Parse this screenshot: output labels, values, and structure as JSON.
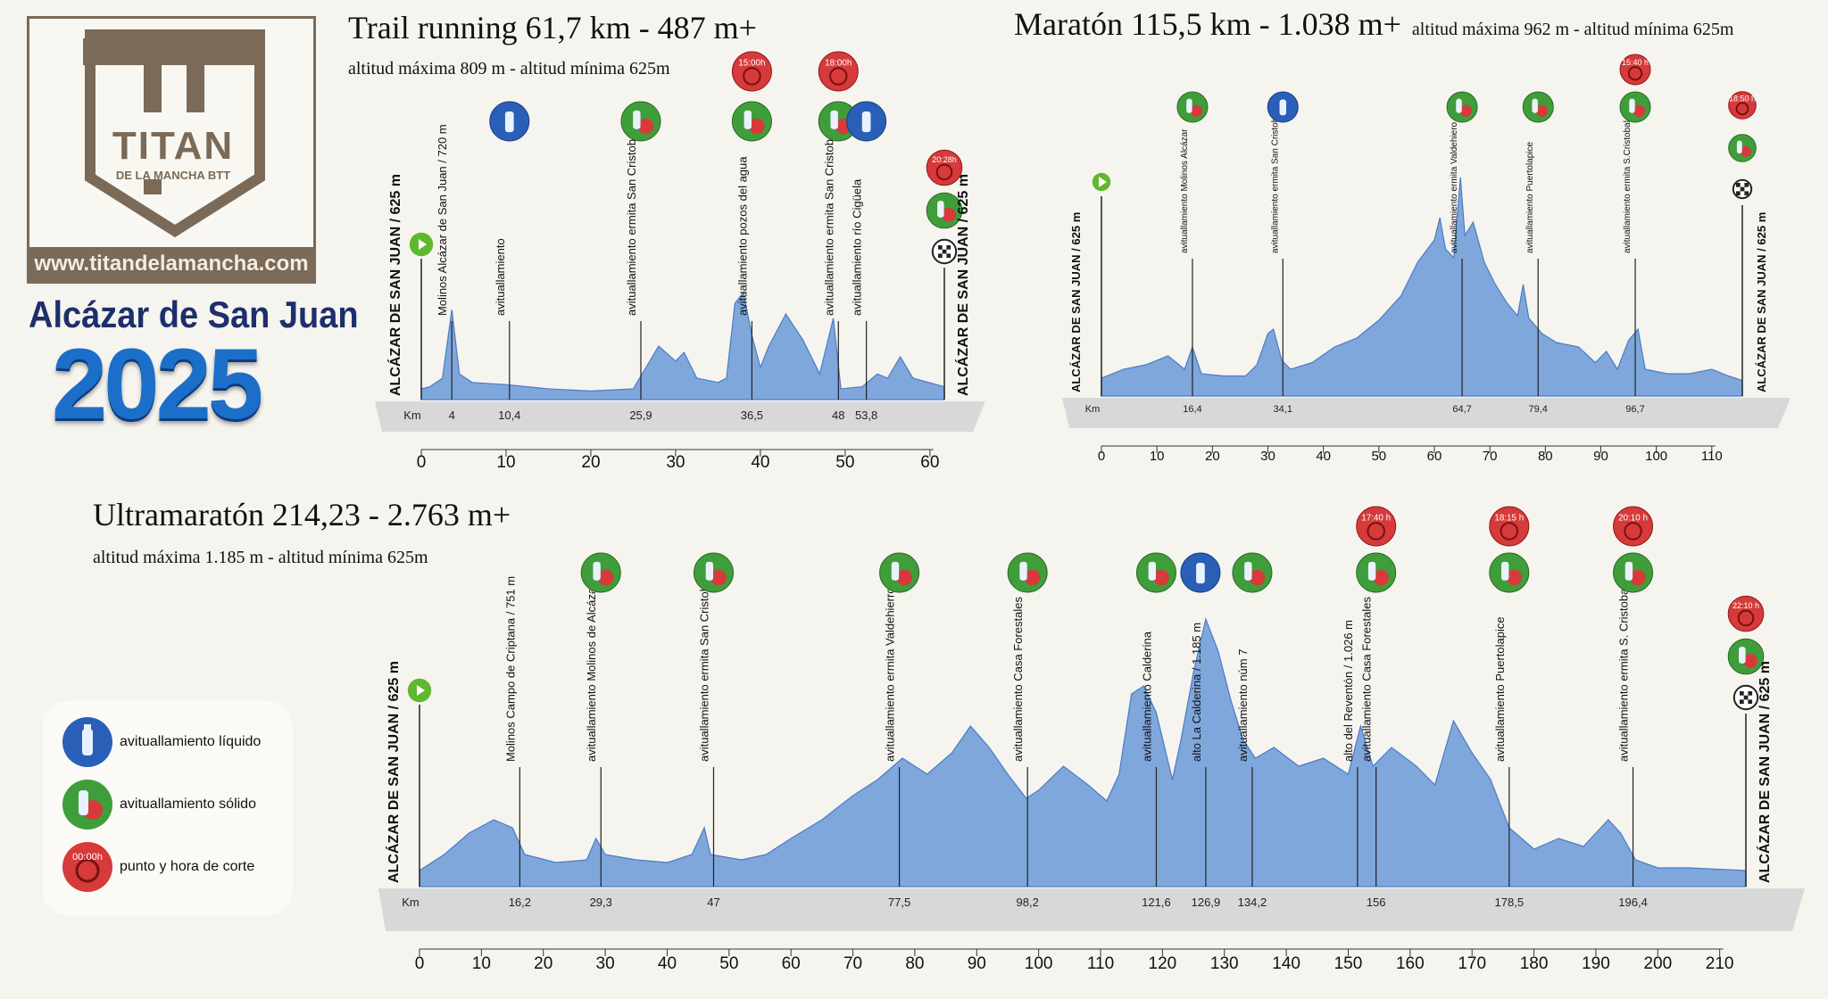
{
  "logo": {
    "name": "TITAN",
    "subtitle": "DE LA MANCHA BTT",
    "url": "www.titandelamancha.com"
  },
  "city": "Alcázar de San Juan",
  "year": "2025",
  "colors": {
    "profile": "#7fa7dc",
    "profile_stroke": "#4a7cc4",
    "base": "#d8d8d8",
    "cut": "#d63a3a",
    "solid": "#3f9e3a",
    "liquid": "#2a5fb8",
    "brand": "#7a6a57"
  },
  "legend": [
    {
      "icon": "water-bottle-icon",
      "label": "avituallamiento líquido"
    },
    {
      "icon": "bottle-apple-icon",
      "label": "avituallamiento sólido"
    },
    {
      "icon": "stopwatch-icon",
      "badge": "00:00h",
      "label": "punto y hora de corte"
    }
  ],
  "chart_data": [
    {
      "type": "area",
      "title": "Trail running 61,7 km - 487 m+",
      "subtitle": "altitud máxima 809 m - altitud mínima 625m",
      "x_unit": "Km",
      "xlim": [
        0,
        61.7
      ],
      "x_ticks": [
        0,
        10,
        20,
        30,
        40,
        50,
        60
      ],
      "profile": [
        [
          0,
          0.05
        ],
        [
          1,
          0.06
        ],
        [
          2.5,
          0.1
        ],
        [
          3.6,
          0.42
        ],
        [
          4.5,
          0.12
        ],
        [
          6,
          0.08
        ],
        [
          10,
          0.07
        ],
        [
          15,
          0.05
        ],
        [
          20,
          0.04
        ],
        [
          25,
          0.05
        ],
        [
          26.5,
          0.15
        ],
        [
          28,
          0.25
        ],
        [
          30,
          0.18
        ],
        [
          31,
          0.22
        ],
        [
          32.5,
          0.1
        ],
        [
          35,
          0.08
        ],
        [
          36,
          0.1
        ],
        [
          37,
          0.45
        ],
        [
          38,
          0.5
        ],
        [
          39,
          0.3
        ],
        [
          40,
          0.15
        ],
        [
          41,
          0.25
        ],
        [
          43,
          0.4
        ],
        [
          45,
          0.28
        ],
        [
          47,
          0.12
        ],
        [
          48.6,
          0.38
        ],
        [
          49.5,
          0.05
        ],
        [
          52,
          0.06
        ],
        [
          53.8,
          0.12
        ],
        [
          55,
          0.1
        ],
        [
          56.5,
          0.2
        ],
        [
          58,
          0.1
        ],
        [
          61.7,
          0.06
        ]
      ],
      "start": {
        "label": "ALCÁZAR DE SAN JUAN / 625 m"
      },
      "finish": {
        "label": "ALCÁZAR DE SAN JUAN / 625 m",
        "cut": "20:28h"
      },
      "points": [
        {
          "km": "4",
          "x": 3.6,
          "label": "Molinos Alcázar de San Juan / 720 m",
          "icons": []
        },
        {
          "km": "10,4",
          "x": 10.4,
          "label": "avituallamiento",
          "icons": [
            "liquid"
          ]
        },
        {
          "km": "25,9",
          "x": 25.9,
          "label": "avituallamiento ermita San Cristobal",
          "icons": [
            "solid"
          ]
        },
        {
          "km": "36,5",
          "x": 39,
          "label": "avituallamiento pozos del agua",
          "icons": [
            "cut",
            "solid"
          ],
          "cut": "15:00h"
        },
        {
          "km": "48",
          "x": 49.2,
          "label": "avituallamiento ermita San Cristobal",
          "icons": [
            "cut",
            "solid"
          ],
          "cut": "18:00h"
        },
        {
          "km": "53,8",
          "x": 52.5,
          "label": "avituallamiento río Cigüela",
          "icons": [
            "liquid"
          ]
        }
      ]
    },
    {
      "type": "area",
      "title": "Maratón 115,5 km - 1.038 m+",
      "subtitle": "altitud máxima 962 m - altitud mínima 625m",
      "x_unit": "Km",
      "xlim": [
        0,
        115.5
      ],
      "x_ticks": [
        0,
        10,
        20,
        30,
        40,
        50,
        60,
        70,
        80,
        90,
        100,
        110
      ],
      "profile": [
        [
          0,
          0.08
        ],
        [
          4,
          0.12
        ],
        [
          8,
          0.14
        ],
        [
          12,
          0.18
        ],
        [
          15,
          0.12
        ],
        [
          16.4,
          0.22
        ],
        [
          18,
          0.1
        ],
        [
          22,
          0.09
        ],
        [
          26,
          0.09
        ],
        [
          28,
          0.14
        ],
        [
          30,
          0.28
        ],
        [
          31,
          0.3
        ],
        [
          32.5,
          0.16
        ],
        [
          34.1,
          0.12
        ],
        [
          38,
          0.15
        ],
        [
          42,
          0.22
        ],
        [
          46,
          0.26
        ],
        [
          50,
          0.34
        ],
        [
          54,
          0.45
        ],
        [
          57,
          0.6
        ],
        [
          60,
          0.7
        ],
        [
          61,
          0.8
        ],
        [
          62,
          0.66
        ],
        [
          63.5,
          0.62
        ],
        [
          64.7,
          0.98
        ],
        [
          65.5,
          0.72
        ],
        [
          67,
          0.78
        ],
        [
          69,
          0.6
        ],
        [
          71,
          0.5
        ],
        [
          73,
          0.42
        ],
        [
          75,
          0.36
        ],
        [
          76,
          0.5
        ],
        [
          77,
          0.35
        ],
        [
          79.4,
          0.28
        ],
        [
          82,
          0.24
        ],
        [
          86,
          0.22
        ],
        [
          89,
          0.15
        ],
        [
          91,
          0.2
        ],
        [
          93,
          0.12
        ],
        [
          95,
          0.25
        ],
        [
          96.7,
          0.3
        ],
        [
          98,
          0.12
        ],
        [
          102,
          0.1
        ],
        [
          106,
          0.1
        ],
        [
          110,
          0.12
        ],
        [
          113,
          0.09
        ],
        [
          115.5,
          0.07
        ]
      ],
      "start": {
        "label": "ALCÁZAR DE SAN JUAN / 625 m"
      },
      "finish": {
        "label": "ALCÁZAR DE SAN JUAN / 625 m",
        "cut": "18:50 h"
      },
      "points": [
        {
          "km": "16,4",
          "x": 16.4,
          "label": "avituallamiento Molinos Alcázar",
          "icons": [
            "solid"
          ]
        },
        {
          "km": "34,1",
          "x": 32.7,
          "label": "avituallamiento ermita San Cristobal",
          "icons": [
            "liquid"
          ]
        },
        {
          "km": "64,7",
          "x": 65,
          "label": "avituallamiento ermita Valdehiero",
          "icons": [
            "solid"
          ]
        },
        {
          "km": "79,4",
          "x": 78.7,
          "label": "avituallamiento Puertolapice",
          "icons": [
            "solid"
          ]
        },
        {
          "km": "96,7",
          "x": 96.2,
          "label": "avituallamiento ermita S.Cristobal",
          "icons": [
            "cut",
            "solid"
          ],
          "cut": "15:40 h"
        }
      ]
    },
    {
      "type": "area",
      "title": "Ultramaratón 214,23 - 2.763 m+",
      "subtitle": "altitud máxima 1.185 m - altitud mínima 625m",
      "x_unit": "Km",
      "xlim": [
        0,
        214.23
      ],
      "x_ticks": [
        0,
        10,
        20,
        30,
        40,
        50,
        60,
        70,
        80,
        90,
        100,
        110,
        120,
        130,
        140,
        150,
        160,
        170,
        180,
        190,
        200,
        210
      ],
      "profile": [
        [
          0,
          0.06
        ],
        [
          4,
          0.12
        ],
        [
          8,
          0.2
        ],
        [
          12,
          0.25
        ],
        [
          15,
          0.22
        ],
        [
          17,
          0.12
        ],
        [
          22,
          0.09
        ],
        [
          27,
          0.1
        ],
        [
          28.5,
          0.18
        ],
        [
          30,
          0.12
        ],
        [
          35,
          0.1
        ],
        [
          40,
          0.09
        ],
        [
          44,
          0.12
        ],
        [
          46,
          0.22
        ],
        [
          47,
          0.12
        ],
        [
          52,
          0.1
        ],
        [
          56,
          0.12
        ],
        [
          60,
          0.18
        ],
        [
          65,
          0.25
        ],
        [
          70,
          0.34
        ],
        [
          74,
          0.4
        ],
        [
          78,
          0.48
        ],
        [
          82,
          0.42
        ],
        [
          86,
          0.5
        ],
        [
          89,
          0.6
        ],
        [
          92,
          0.52
        ],
        [
          95,
          0.42
        ],
        [
          98,
          0.33
        ],
        [
          100,
          0.36
        ],
        [
          104,
          0.45
        ],
        [
          108,
          0.38
        ],
        [
          111,
          0.32
        ],
        [
          113,
          0.42
        ],
        [
          115,
          0.72
        ],
        [
          117,
          0.75
        ],
        [
          119,
          0.65
        ],
        [
          121.6,
          0.4
        ],
        [
          123,
          0.55
        ],
        [
          125,
          0.8
        ],
        [
          127,
          1.0
        ],
        [
          129,
          0.88
        ],
        [
          131,
          0.7
        ],
        [
          133,
          0.55
        ],
        [
          135,
          0.48
        ],
        [
          138,
          0.52
        ],
        [
          142,
          0.45
        ],
        [
          146,
          0.48
        ],
        [
          150,
          0.42
        ],
        [
          152,
          0.6
        ],
        [
          154,
          0.45
        ],
        [
          157,
          0.52
        ],
        [
          161,
          0.45
        ],
        [
          164,
          0.38
        ],
        [
          167,
          0.62
        ],
        [
          170,
          0.5
        ],
        [
          173,
          0.4
        ],
        [
          176,
          0.22
        ],
        [
          180,
          0.14
        ],
        [
          184,
          0.18
        ],
        [
          188,
          0.15
        ],
        [
          192,
          0.25
        ],
        [
          194,
          0.2
        ],
        [
          196.4,
          0.1
        ],
        [
          200,
          0.07
        ],
        [
          205,
          0.07
        ],
        [
          214.23,
          0.06
        ]
      ],
      "start": {
        "label": "ALCÁZAR DE SAN JUAN / 625 m"
      },
      "finish": {
        "label": "ALCÁZAR DE SAN JUAN / 625 m",
        "cut": "22:10 h"
      },
      "points": [
        {
          "km": "16,2",
          "x": 16.2,
          "label": "Molinos Campo de Criptana / 751 m",
          "icons": []
        },
        {
          "km": "29,3",
          "x": 29.3,
          "label": "avituallamiento Molinos de Alcázar",
          "icons": [
            "solid"
          ]
        },
        {
          "km": "47",
          "x": 47.5,
          "label": "avituallamiento ermita San Cristobal",
          "icons": [
            "solid"
          ]
        },
        {
          "km": "77,5",
          "x": 77.5,
          "label": "avituallamiento ermita Valdehierro",
          "icons": [
            "solid"
          ]
        },
        {
          "km": "98,2",
          "x": 98.2,
          "label": "avituallamiento Casa Forestales",
          "icons": [
            "solid"
          ]
        },
        {
          "km": "121,6",
          "x": 119,
          "label": "avituallamiento Calderina",
          "icons": [
            "solid"
          ]
        },
        {
          "km": "126,9",
          "x": 127,
          "label": "alto La Calderina / 1.185 m",
          "icons": [
            "liquid"
          ]
        },
        {
          "km": "134,2",
          "x": 134.5,
          "label": "avituallamiento núm 7",
          "icons": [
            "solid"
          ]
        },
        {
          "km": "",
          "x": 151.5,
          "label": "alto del Reventón / 1.026 m",
          "icons": []
        },
        {
          "km": "156",
          "x": 154.5,
          "label": "avituallamiento Casa Forestales",
          "icons": [
            "cut",
            "solid"
          ],
          "cut": "17:40 h"
        },
        {
          "km": "178,5",
          "x": 176,
          "label": "avituallamiento Puertolapice",
          "icons": [
            "cut",
            "solid"
          ],
          "cut": "18:15 h"
        },
        {
          "km": "196,4",
          "x": 196,
          "label": "avituallamiento ermita S. Cristobal",
          "icons": [
            "cut",
            "solid"
          ],
          "cut": "20:10 h"
        }
      ]
    }
  ]
}
